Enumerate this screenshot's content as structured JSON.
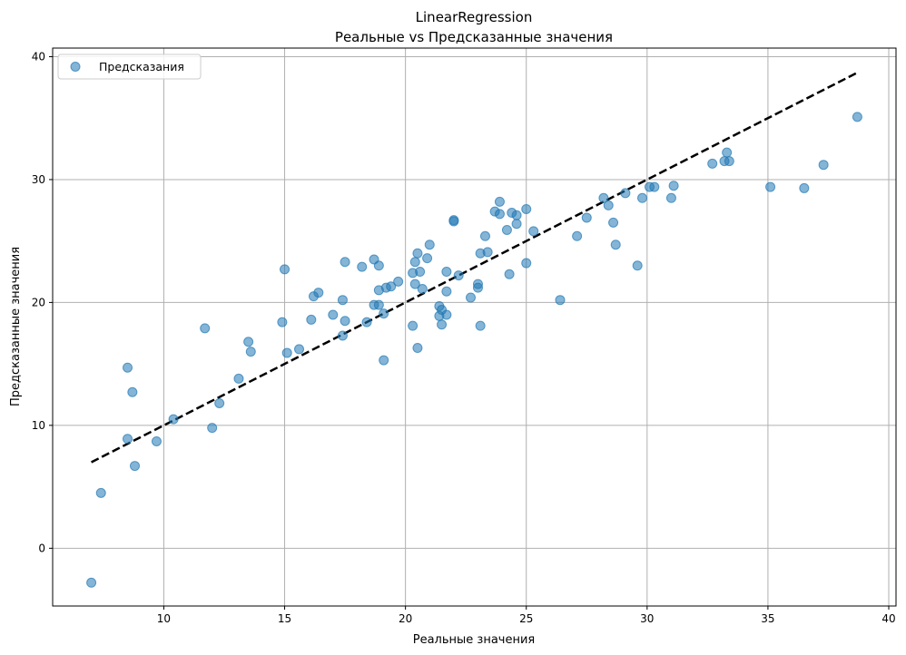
{
  "chart_data": {
    "type": "scatter",
    "title": "LinearRegression",
    "subtitle": "Реальные vs Предсказанные значения",
    "xlabel": "Реальные значения",
    "ylabel": "Предсказанные значения",
    "xlim": [
      5.4,
      40.3
    ],
    "ylim": [
      -4.7,
      40.7
    ],
    "xticks": [
      10,
      15,
      20,
      25,
      30,
      35,
      40
    ],
    "yticks": [
      0,
      10,
      20,
      30,
      40
    ],
    "grid": true,
    "legend": {
      "placement": "top-left",
      "entries": [
        "Предсказания"
      ]
    },
    "colors": {
      "points": "#1f77b4",
      "reference_line": "#000000",
      "grid": "#b0b0b0"
    },
    "series": [
      {
        "name": "Предсказания",
        "points": [
          [
            7.0,
            -2.8
          ],
          [
            7.4,
            4.5
          ],
          [
            8.5,
            8.9
          ],
          [
            8.5,
            14.7
          ],
          [
            8.7,
            12.7
          ],
          [
            8.8,
            6.7
          ],
          [
            9.7,
            8.7
          ],
          [
            10.4,
            10.5
          ],
          [
            11.7,
            17.9
          ],
          [
            12.0,
            9.8
          ],
          [
            12.3,
            11.8
          ],
          [
            13.1,
            13.8
          ],
          [
            13.5,
            16.8
          ],
          [
            13.6,
            16.0
          ],
          [
            14.9,
            18.4
          ],
          [
            15.0,
            22.7
          ],
          [
            15.1,
            15.9
          ],
          [
            15.6,
            16.2
          ],
          [
            16.1,
            18.6
          ],
          [
            16.2,
            20.5
          ],
          [
            16.4,
            20.8
          ],
          [
            17.0,
            19.0
          ],
          [
            17.4,
            20.2
          ],
          [
            17.4,
            17.3
          ],
          [
            17.5,
            23.3
          ],
          [
            17.5,
            18.5
          ],
          [
            18.2,
            22.9
          ],
          [
            18.4,
            18.4
          ],
          [
            18.7,
            23.5
          ],
          [
            18.7,
            19.8
          ],
          [
            18.9,
            23.0
          ],
          [
            18.9,
            21.0
          ],
          [
            18.9,
            19.8
          ],
          [
            19.1,
            19.1
          ],
          [
            19.1,
            15.3
          ],
          [
            19.2,
            21.2
          ],
          [
            19.4,
            21.3
          ],
          [
            19.7,
            21.7
          ],
          [
            20.3,
            18.1
          ],
          [
            20.3,
            22.4
          ],
          [
            20.4,
            23.3
          ],
          [
            20.4,
            21.5
          ],
          [
            20.5,
            24.0
          ],
          [
            20.5,
            16.3
          ],
          [
            20.6,
            22.5
          ],
          [
            20.7,
            21.1
          ],
          [
            20.9,
            23.6
          ],
          [
            21.0,
            24.7
          ],
          [
            21.4,
            18.9
          ],
          [
            21.4,
            19.7
          ],
          [
            21.5,
            18.2
          ],
          [
            21.5,
            19.4
          ],
          [
            21.7,
            20.9
          ],
          [
            21.7,
            19.0
          ],
          [
            21.7,
            22.5
          ],
          [
            22.0,
            26.7
          ],
          [
            22.0,
            26.6
          ],
          [
            22.2,
            22.2
          ],
          [
            22.7,
            20.4
          ],
          [
            23.0,
            21.2
          ],
          [
            23.0,
            21.5
          ],
          [
            23.1,
            24.0
          ],
          [
            23.1,
            18.1
          ],
          [
            23.3,
            25.4
          ],
          [
            23.4,
            24.1
          ],
          [
            23.7,
            27.4
          ],
          [
            23.9,
            27.2
          ],
          [
            23.9,
            28.2
          ],
          [
            24.2,
            25.9
          ],
          [
            24.3,
            22.3
          ],
          [
            24.4,
            27.3
          ],
          [
            24.6,
            27.1
          ],
          [
            24.6,
            26.4
          ],
          [
            25.0,
            27.6
          ],
          [
            25.0,
            23.2
          ],
          [
            25.3,
            25.8
          ],
          [
            26.4,
            20.2
          ],
          [
            27.1,
            25.4
          ],
          [
            27.5,
            26.9
          ],
          [
            28.2,
            28.5
          ],
          [
            28.4,
            27.9
          ],
          [
            28.6,
            26.5
          ],
          [
            28.7,
            24.7
          ],
          [
            29.1,
            28.9
          ],
          [
            29.6,
            23.0
          ],
          [
            29.8,
            28.5
          ],
          [
            30.1,
            29.4
          ],
          [
            30.3,
            29.4
          ],
          [
            31.0,
            28.5
          ],
          [
            31.1,
            29.5
          ],
          [
            32.7,
            31.3
          ],
          [
            33.2,
            31.5
          ],
          [
            33.3,
            32.2
          ],
          [
            33.4,
            31.5
          ],
          [
            35.1,
            29.4
          ],
          [
            36.5,
            29.3
          ],
          [
            37.3,
            31.2
          ],
          [
            38.7,
            35.1
          ]
        ]
      }
    ],
    "reference_line": {
      "style": "dashed",
      "from": [
        7.0,
        7.0
      ],
      "to": [
        38.7,
        38.7
      ]
    }
  }
}
